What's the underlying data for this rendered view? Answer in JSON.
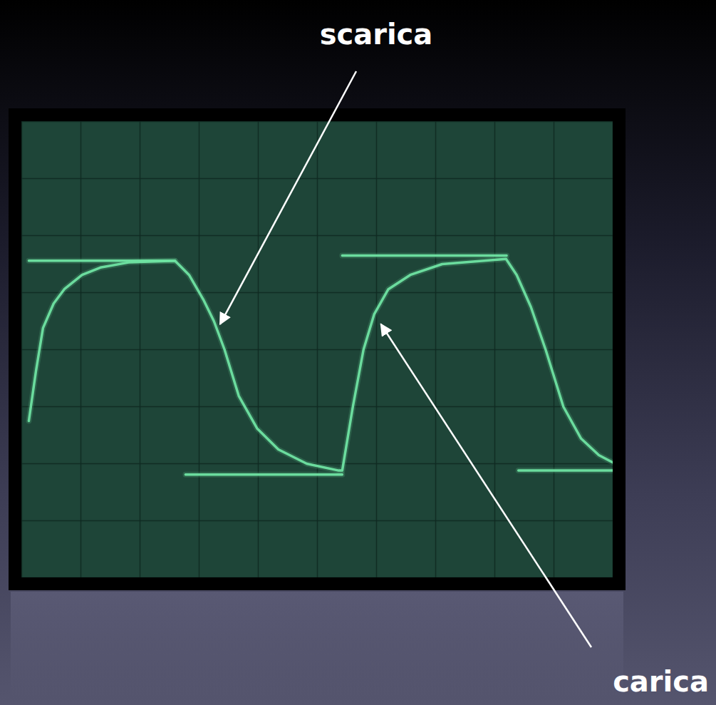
{
  "chart_data": {
    "type": "line",
    "xlim": [
      0,
      10
    ],
    "ylim": [
      -4,
      4
    ],
    "xticks": [
      0,
      1,
      2,
      3,
      4,
      5,
      6,
      7,
      8,
      9,
      10
    ],
    "yticks": [
      -4,
      -3,
      -2,
      -1,
      0,
      1,
      2,
      3,
      4
    ],
    "grid": true,
    "tick_labels": false,
    "series": [
      {
        "color": "#6fe3a2",
        "x": [
          0.12,
          2.59,
          2.6,
          2.77,
          5.42,
          5.42,
          5.42,
          8.2,
          8.3,
          8.4,
          10
        ],
        "values": [
          1.56,
          1.56,
          null,
          -2.19,
          -2.19,
          null,
          1.65,
          1.65,
          null,
          -2.12,
          -2.12
        ]
      },
      {
        "color": "#6fe3a2",
        "x": [
          0.12,
          0.24,
          0.36,
          0.54,
          0.72,
          1.02,
          1.33,
          1.81,
          2.59,
          2.83,
          3.07,
          3.25,
          3.43,
          3.67,
          3.98,
          4.34,
          4.82,
          5.36,
          5.42,
          5.6,
          5.78,
          5.96,
          6.2,
          6.57,
          7.11,
          8.19,
          8.37,
          8.61,
          8.86,
          9.16,
          9.46,
          9.76,
          10
        ],
        "values": [
          -1.25,
          -0.38,
          0.38,
          0.81,
          1.06,
          1.31,
          1.44,
          1.53,
          1.56,
          1.31,
          0.88,
          0.5,
          0.0,
          -0.81,
          -1.38,
          -1.75,
          -2.0,
          -2.12,
          -2.12,
          -1.0,
          0.0,
          0.62,
          1.06,
          1.31,
          1.5,
          1.59,
          1.31,
          0.75,
          0.0,
          -1.0,
          -1.56,
          -1.85,
          -1.98
        ]
      }
    ],
    "annotations": [
      {
        "text": "scarica",
        "x": 3.36,
        "y": 0.44
      },
      {
        "text": "carica",
        "x": 6.08,
        "y": 0.44
      }
    ]
  }
}
